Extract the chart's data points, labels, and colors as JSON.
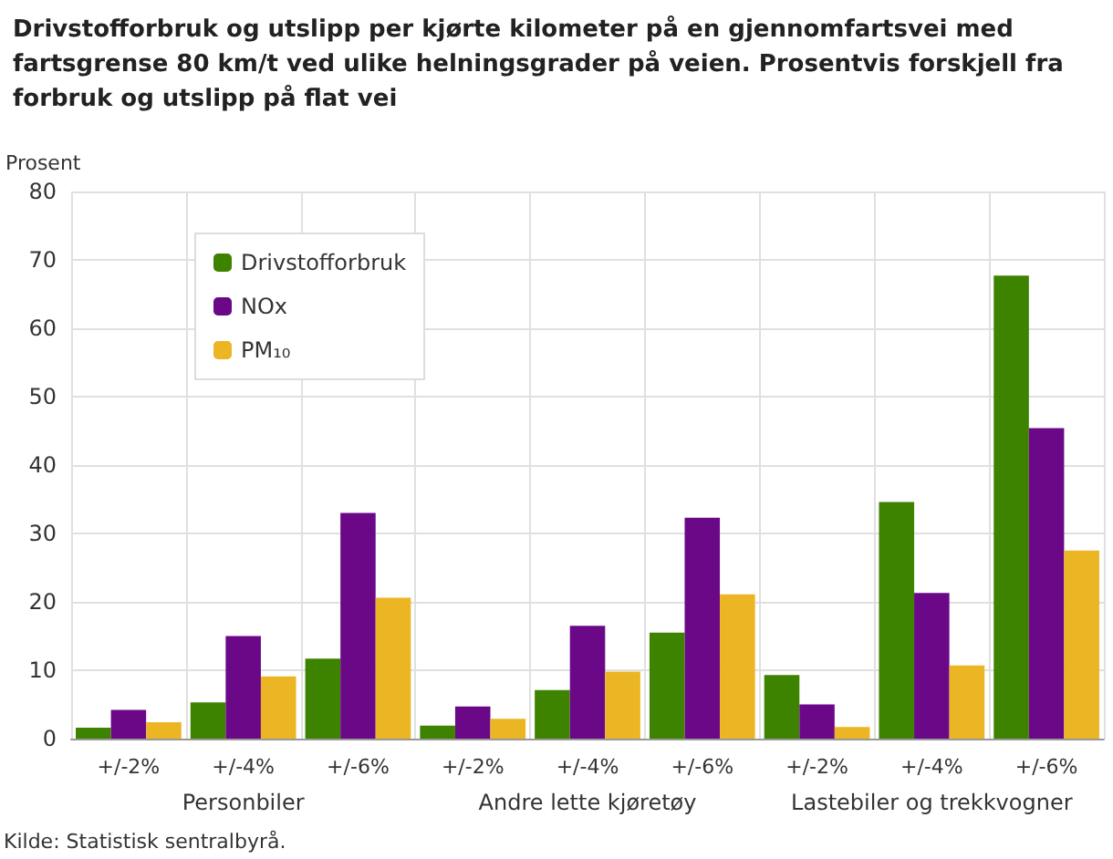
{
  "chart_data": {
    "type": "bar",
    "title": "Drivstofforbruk og utslipp per kjørte kilometer på en gjennomfartsvei med fartsgrense 80 km/t ved ulike helningsgrader på veien. Prosentvis forskjell fra forbruk og utslipp på flat vei",
    "ylabel": "Prosent",
    "categories": [
      "+/-2%",
      "+/-4%",
      "+/-6%",
      "+/-2%",
      "+/-4%",
      "+/-6%",
      "+/-2%",
      "+/-4%",
      "+/-6%"
    ],
    "series": [
      {
        "name": "Drivstofforbruk",
        "color": "#3e8300",
        "values": [
          1.6,
          5.3,
          11.7,
          1.9,
          7.1,
          15.5,
          9.3,
          34.6,
          67.7
        ]
      },
      {
        "name": "NOx",
        "color": "#6a0888",
        "values": [
          4.2,
          15,
          33,
          4.7,
          16.5,
          32.3,
          5,
          21.3,
          45.4
        ]
      },
      {
        "name": "PM₁₀",
        "color": "#ebb523",
        "values": [
          2.4,
          9.1,
          20.6,
          2.9,
          9.8,
          21.1,
          1.7,
          10.7,
          27.5
        ]
      }
    ],
    "ylim": [
      0,
      80
    ],
    "yticks": [
      0,
      10,
      20,
      30,
      40,
      50,
      60,
      70,
      80
    ],
    "grid": true,
    "legend": "top left",
    "annotations": [
      "Personbiler",
      "Andre lette kjøretøy",
      "Lastebiler og trekkvogner",
      "Kilde: Statistisk sentralbyrå."
    ]
  }
}
